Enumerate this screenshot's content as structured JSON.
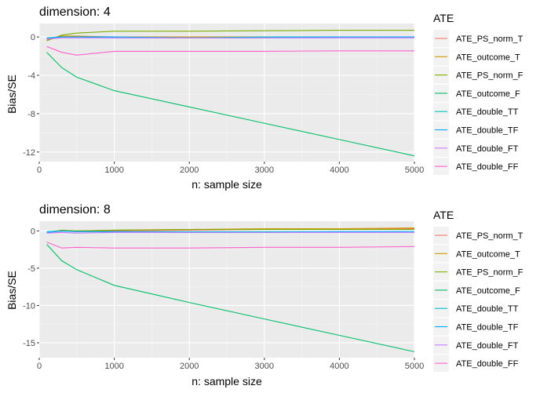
{
  "chart_data": [
    {
      "type": "line",
      "title": "dimension: 4",
      "xlabel": "n: sample size",
      "ylabel": "Bias/SE",
      "xlim": [
        0,
        5000
      ],
      "ylim": [
        -13,
        1.4
      ],
      "xticks": [
        0,
        1000,
        2000,
        3000,
        4000,
        5000
      ],
      "yticks": [
        0,
        -4,
        -8,
        -12
      ],
      "grid": true,
      "legend_title": "ATE",
      "legend_position": "right",
      "series": [
        {
          "name": "ATE_PS_norm_T",
          "color": "#F8766D",
          "x": [
            100,
            300,
            500,
            1000,
            2000,
            3000,
            4000,
            5000
          ],
          "y": [
            -0.3,
            0.0,
            0.0,
            0.0,
            0.0,
            0.0,
            0.0,
            0.0
          ]
        },
        {
          "name": "ATE_outcome_T",
          "color": "#CD9600",
          "x": [
            100,
            300,
            500,
            1000,
            2000,
            3000,
            4000,
            5000
          ],
          "y": [
            -0.2,
            0.1,
            0.1,
            0.0,
            0.0,
            0.0,
            0.0,
            0.0
          ]
        },
        {
          "name": "ATE_PS_norm_F",
          "color": "#7CAE00",
          "x": [
            100,
            300,
            500,
            1000,
            2000,
            3000,
            4000,
            5000
          ],
          "y": [
            -0.4,
            0.2,
            0.4,
            0.6,
            0.6,
            0.65,
            0.7,
            0.7
          ]
        },
        {
          "name": "ATE_outcome_F",
          "color": "#00BE67",
          "x": [
            100,
            300,
            500,
            1000,
            2000,
            3000,
            4000,
            5000
          ],
          "y": [
            -1.6,
            -3.2,
            -4.2,
            -5.6,
            -7.3,
            -9.0,
            -10.7,
            -12.4
          ]
        },
        {
          "name": "ATE_double_TT",
          "color": "#00BFC4",
          "x": [
            100,
            300,
            500,
            1000,
            2000,
            3000,
            4000,
            5000
          ],
          "y": [
            -0.1,
            0.0,
            0.0,
            -0.1,
            -0.1,
            0.0,
            0.0,
            0.0
          ]
        },
        {
          "name": "ATE_double_TF",
          "color": "#00A9FF",
          "x": [
            100,
            300,
            500,
            1000,
            2000,
            3000,
            4000,
            5000
          ],
          "y": [
            -0.1,
            0.0,
            0.0,
            0.0,
            -0.1,
            -0.1,
            0.0,
            0.0
          ]
        },
        {
          "name": "ATE_double_FT",
          "color": "#C77CFF",
          "x": [
            100,
            300,
            500,
            1000,
            2000,
            3000,
            4000,
            5000
          ],
          "y": [
            -0.2,
            -0.1,
            -0.1,
            -0.1,
            -0.1,
            -0.1,
            -0.1,
            -0.1
          ]
        },
        {
          "name": "ATE_double_FF",
          "color": "#FF61CC",
          "x": [
            100,
            300,
            500,
            1000,
            2000,
            3000,
            4000,
            5000
          ],
          "y": [
            -1.0,
            -1.6,
            -1.9,
            -1.5,
            -1.5,
            -1.5,
            -1.45,
            -1.45
          ]
        }
      ]
    },
    {
      "type": "line",
      "title": "dimension: 8",
      "xlabel": "n: sample size",
      "ylabel": "Bias/SE",
      "xlim": [
        0,
        5000
      ],
      "ylim": [
        -17,
        1.3
      ],
      "xticks": [
        0,
        1000,
        2000,
        3000,
        4000,
        5000
      ],
      "yticks": [
        0,
        -5,
        -10,
        -15
      ],
      "grid": true,
      "legend_title": "ATE",
      "legend_position": "right",
      "series": [
        {
          "name": "ATE_PS_norm_T",
          "color": "#F8766D",
          "x": [
            100,
            300,
            500,
            1000,
            2000,
            3000,
            4000,
            5000
          ],
          "y": [
            -0.2,
            0.0,
            0.0,
            0.0,
            0.1,
            0.2,
            0.3,
            0.3
          ]
        },
        {
          "name": "ATE_outcome_T",
          "color": "#CD9600",
          "x": [
            100,
            300,
            500,
            1000,
            2000,
            3000,
            4000,
            5000
          ],
          "y": [
            -0.2,
            0.0,
            0.0,
            0.1,
            0.2,
            0.3,
            0.3,
            0.4
          ]
        },
        {
          "name": "ATE_PS_norm_F",
          "color": "#7CAE00",
          "x": [
            100,
            300,
            500,
            1000,
            2000,
            3000,
            4000,
            5000
          ],
          "y": [
            -0.2,
            0.1,
            0.0,
            0.1,
            0.2,
            0.2,
            0.2,
            0.2
          ]
        },
        {
          "name": "ATE_outcome_F",
          "color": "#00BE67",
          "x": [
            100,
            300,
            500,
            1000,
            2000,
            3000,
            4000,
            5000
          ],
          "y": [
            -1.8,
            -4.0,
            -5.2,
            -7.3,
            -9.6,
            -11.8,
            -14.0,
            -16.2
          ]
        },
        {
          "name": "ATE_double_TT",
          "color": "#00BFC4",
          "x": [
            100,
            300,
            500,
            1000,
            2000,
            3000,
            4000,
            5000
          ],
          "y": [
            -0.1,
            0.0,
            -0.1,
            -0.1,
            -0.1,
            -0.1,
            -0.1,
            -0.1
          ]
        },
        {
          "name": "ATE_double_TF",
          "color": "#00A9FF",
          "x": [
            100,
            300,
            500,
            1000,
            2000,
            3000,
            4000,
            5000
          ],
          "y": [
            -0.2,
            0.0,
            -0.1,
            -0.1,
            -0.2,
            -0.2,
            -0.1,
            -0.1
          ]
        },
        {
          "name": "ATE_double_FT",
          "color": "#C77CFF",
          "x": [
            100,
            300,
            500,
            1000,
            2000,
            3000,
            4000,
            5000
          ],
          "y": [
            -0.3,
            -0.2,
            -0.3,
            -0.2,
            -0.2,
            -0.2,
            -0.2,
            -0.2
          ]
        },
        {
          "name": "ATE_double_FF",
          "color": "#FF61CC",
          "x": [
            100,
            300,
            500,
            1000,
            2000,
            3000,
            4000,
            5000
          ],
          "y": [
            -1.5,
            -2.3,
            -2.2,
            -2.3,
            -2.3,
            -2.2,
            -2.2,
            -2.1
          ]
        }
      ]
    }
  ],
  "colors": {
    "panel_background": "#EBEBEB",
    "major_grid": "#FFFFFF",
    "tick_text": "#4D4D4D",
    "legend_key_background": "#F2F2F2"
  }
}
